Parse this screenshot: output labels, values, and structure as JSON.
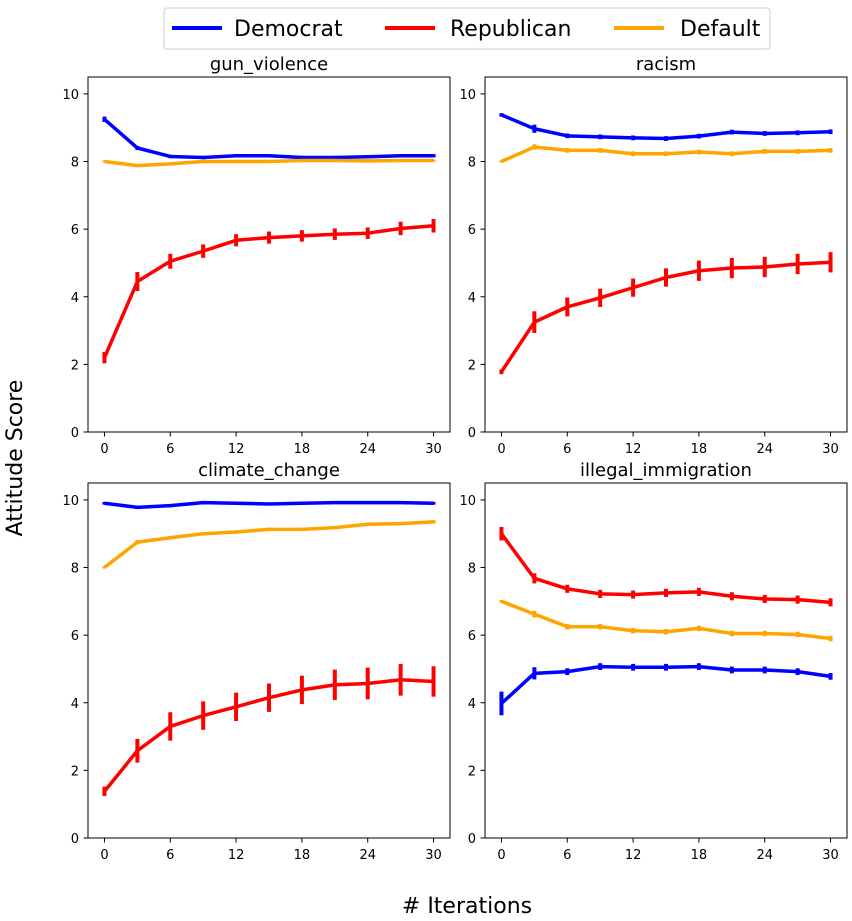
{
  "figure": {
    "ylabel": "Attitude Score",
    "xlabel": "# Iterations"
  },
  "legend": {
    "placement": "top-center",
    "entries": [
      {
        "name": "Democrat",
        "color": "#0000ff"
      },
      {
        "name": "Republican",
        "color": "#ff0000"
      },
      {
        "name": "Default",
        "color": "#ffa500"
      }
    ]
  },
  "chart_data": [
    {
      "type": "line",
      "title": "gun_violence",
      "x": [
        0,
        3,
        6,
        9,
        12,
        15,
        18,
        21,
        24,
        27,
        30
      ],
      "xticks": [
        0,
        6,
        12,
        18,
        24,
        30
      ],
      "yticks": [
        0,
        2,
        4,
        6,
        8,
        10
      ],
      "xlim": [
        -1.5,
        31.5
      ],
      "ylim": [
        0,
        10.5
      ],
      "series": [
        {
          "name": "Democrat",
          "color": "#0000ff",
          "values": [
            9.25,
            8.4,
            8.15,
            8.12,
            8.17,
            8.17,
            8.12,
            8.12,
            8.14,
            8.17,
            8.17
          ],
          "errors": [
            0.08,
            0.06,
            0.05,
            0.05,
            0.05,
            0.05,
            0.05,
            0.05,
            0.05,
            0.05,
            0.05
          ]
        },
        {
          "name": "Republican",
          "color": "#ff0000",
          "values": [
            2.2,
            4.45,
            5.05,
            5.35,
            5.67,
            5.75,
            5.8,
            5.85,
            5.88,
            6.02,
            6.1
          ],
          "errors": [
            0.17,
            0.28,
            0.22,
            0.2,
            0.18,
            0.18,
            0.17,
            0.17,
            0.17,
            0.2,
            0.2
          ]
        },
        {
          "name": "Default",
          "color": "#ffa500",
          "values": [
            8.0,
            7.88,
            7.93,
            8.0,
            8.0,
            8.0,
            8.03,
            8.03,
            8.02,
            8.03,
            8.03
          ],
          "errors": [
            0.03,
            0.04,
            0.03,
            0.03,
            0.03,
            0.03,
            0.03,
            0.03,
            0.03,
            0.03,
            0.03
          ]
        }
      ]
    },
    {
      "type": "line",
      "title": "racism",
      "x": [
        0,
        3,
        6,
        9,
        12,
        15,
        18,
        21,
        24,
        27,
        30
      ],
      "xticks": [
        0,
        6,
        12,
        18,
        24,
        30
      ],
      "yticks": [
        0,
        2,
        4,
        6,
        8,
        10
      ],
      "xlim": [
        -1.5,
        31.5
      ],
      "ylim": [
        0,
        10.5
      ],
      "series": [
        {
          "name": "Democrat",
          "color": "#0000ff",
          "values": [
            9.38,
            8.97,
            8.76,
            8.73,
            8.7,
            8.68,
            8.75,
            8.87,
            8.83,
            8.85,
            8.88
          ],
          "errors": [
            0.05,
            0.12,
            0.07,
            0.07,
            0.07,
            0.07,
            0.07,
            0.07,
            0.07,
            0.07,
            0.07
          ]
        },
        {
          "name": "Republican",
          "color": "#ff0000",
          "values": [
            1.78,
            3.25,
            3.7,
            3.97,
            4.27,
            4.57,
            4.77,
            4.85,
            4.88,
            4.97,
            5.02
          ],
          "errors": [
            0.07,
            0.32,
            0.28,
            0.27,
            0.27,
            0.27,
            0.3,
            0.3,
            0.3,
            0.3,
            0.3
          ]
        },
        {
          "name": "Default",
          "color": "#ffa500",
          "values": [
            8.0,
            8.43,
            8.33,
            8.33,
            8.23,
            8.23,
            8.28,
            8.23,
            8.3,
            8.3,
            8.33
          ],
          "errors": [
            0.03,
            0.08,
            0.07,
            0.07,
            0.07,
            0.07,
            0.07,
            0.07,
            0.07,
            0.07,
            0.07
          ]
        }
      ]
    },
    {
      "type": "line",
      "title": "climate_change",
      "x": [
        0,
        3,
        6,
        9,
        12,
        15,
        18,
        21,
        24,
        27,
        30
      ],
      "xticks": [
        0,
        6,
        12,
        18,
        24,
        30
      ],
      "yticks": [
        0,
        2,
        4,
        6,
        8,
        10
      ],
      "xlim": [
        -1.5,
        31.5
      ],
      "ylim": [
        0,
        10.5
      ],
      "series": [
        {
          "name": "Democrat",
          "color": "#0000ff",
          "values": [
            9.9,
            9.78,
            9.83,
            9.92,
            9.9,
            9.88,
            9.9,
            9.92,
            9.92,
            9.92,
            9.9
          ],
          "errors": [
            0.04,
            0.05,
            0.05,
            0.04,
            0.04,
            0.04,
            0.04,
            0.04,
            0.04,
            0.04,
            0.04
          ]
        },
        {
          "name": "Republican",
          "color": "#ff0000",
          "values": [
            1.38,
            2.58,
            3.3,
            3.62,
            3.88,
            4.15,
            4.38,
            4.53,
            4.57,
            4.68,
            4.63
          ],
          "errors": [
            0.14,
            0.35,
            0.42,
            0.42,
            0.42,
            0.42,
            0.42,
            0.45,
            0.47,
            0.47,
            0.45
          ]
        },
        {
          "name": "Default",
          "color": "#ffa500",
          "values": [
            8.0,
            8.75,
            8.88,
            9.0,
            9.05,
            9.13,
            9.13,
            9.18,
            9.28,
            9.3,
            9.35
          ],
          "errors": [
            0.03,
            0.06,
            0.05,
            0.05,
            0.05,
            0.05,
            0.05,
            0.05,
            0.05,
            0.05,
            0.05
          ]
        }
      ]
    },
    {
      "type": "line",
      "title": "illegal_immigration",
      "x": [
        0,
        3,
        6,
        9,
        12,
        15,
        18,
        21,
        24,
        27,
        30
      ],
      "xticks": [
        0,
        6,
        12,
        18,
        24,
        30
      ],
      "yticks": [
        0,
        2,
        4,
        6,
        8,
        10
      ],
      "xlim": [
        -1.5,
        31.5
      ],
      "ylim": [
        0,
        10.5
      ],
      "series": [
        {
          "name": "Democrat",
          "color": "#0000ff",
          "values": [
            3.98,
            4.87,
            4.92,
            5.07,
            5.05,
            5.05,
            5.07,
            4.97,
            4.97,
            4.92,
            4.78
          ],
          "errors": [
            0.35,
            0.18,
            0.1,
            0.1,
            0.1,
            0.1,
            0.1,
            0.1,
            0.1,
            0.1,
            0.1
          ]
        },
        {
          "name": "Republican",
          "color": "#ff0000",
          "values": [
            9.0,
            7.68,
            7.37,
            7.22,
            7.2,
            7.25,
            7.28,
            7.15,
            7.07,
            7.05,
            6.97
          ],
          "errors": [
            0.2,
            0.15,
            0.12,
            0.12,
            0.12,
            0.12,
            0.12,
            0.12,
            0.12,
            0.12,
            0.12
          ]
        },
        {
          "name": "Default",
          "color": "#ffa500",
          "values": [
            7.0,
            6.62,
            6.25,
            6.25,
            6.13,
            6.1,
            6.2,
            6.05,
            6.05,
            6.02,
            5.9
          ],
          "errors": [
            0.04,
            0.1,
            0.08,
            0.08,
            0.08,
            0.08,
            0.08,
            0.08,
            0.08,
            0.08,
            0.08
          ]
        }
      ]
    }
  ]
}
